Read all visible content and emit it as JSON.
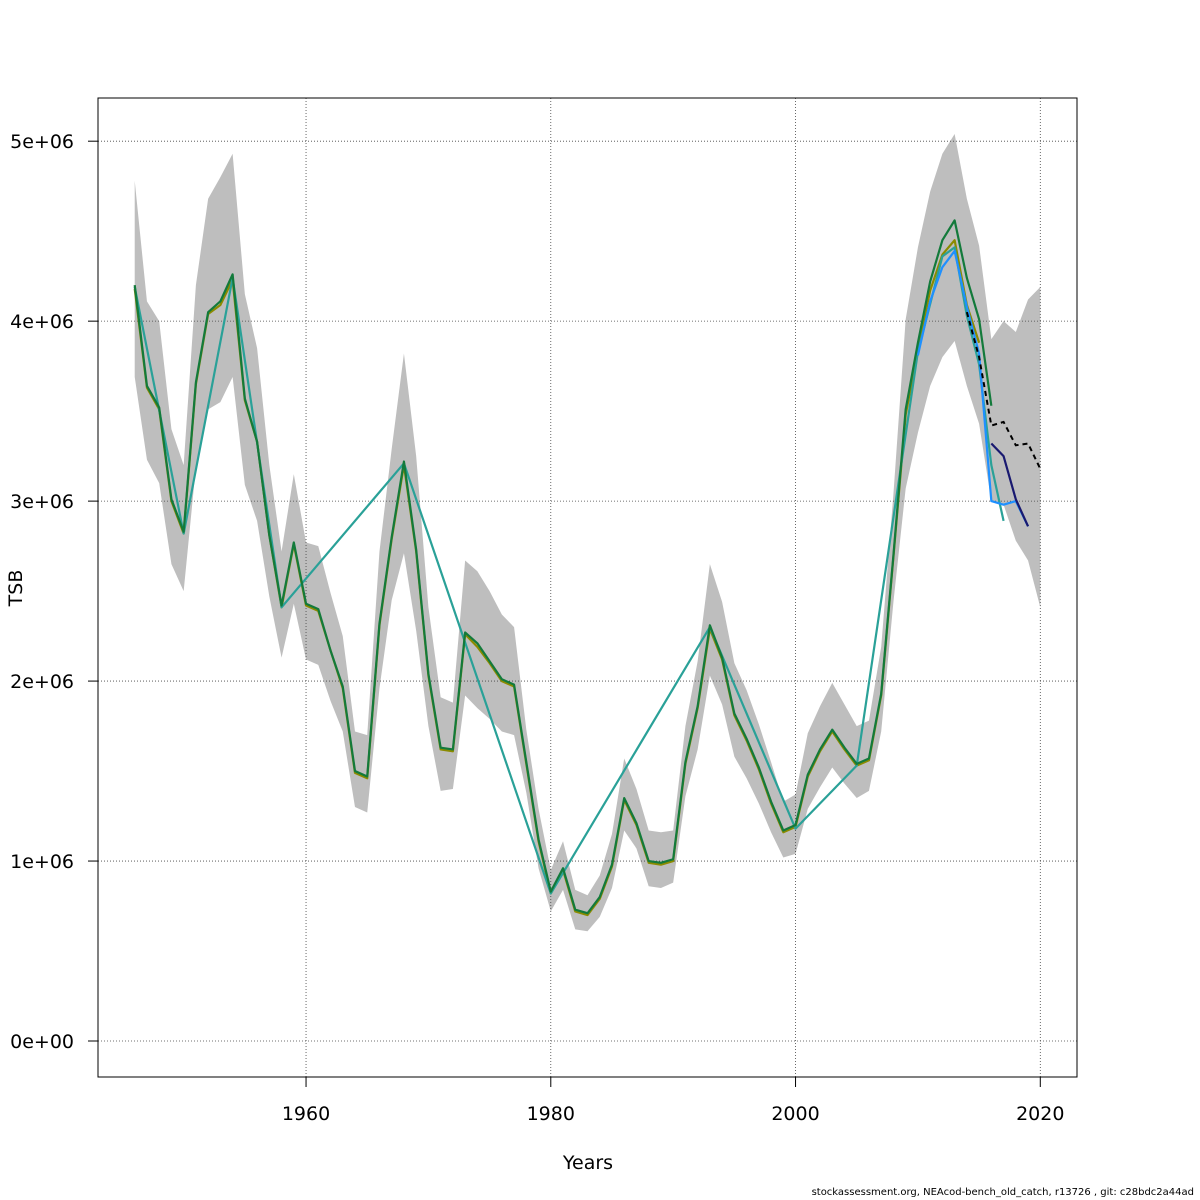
{
  "chart_data": {
    "type": "line",
    "title": "",
    "xlabel": "Years",
    "ylabel": "TSB",
    "xlim": [
      1943,
      2023
    ],
    "ylim": [
      -200000,
      5240000
    ],
    "x_ticks": [
      1960,
      1980,
      2000,
      2020
    ],
    "x_tick_labels": [
      "1960",
      "1980",
      "2000",
      "2020"
    ],
    "y_ticks": [
      0,
      1000000,
      2000000,
      3000000,
      4000000,
      5000000
    ],
    "y_tick_labels": [
      "0e+00",
      "1e+06",
      "2e+06",
      "3e+06",
      "4e+06",
      "5e+06"
    ],
    "grid": true,
    "legend": "none",
    "confidence_band": {
      "x": [
        1946,
        1947,
        1948,
        1949,
        1950,
        1951,
        1952,
        1953,
        1954,
        1955,
        1956,
        1957,
        1958,
        1959,
        1960,
        1961,
        1962,
        1963,
        1964,
        1965,
        1966,
        1967,
        1968,
        1969,
        1970,
        1971,
        1972,
        1973,
        1974,
        1975,
        1976,
        1977,
        1978,
        1979,
        1980,
        1981,
        1982,
        1983,
        1984,
        1985,
        1986,
        1987,
        1988,
        1989,
        1990,
        1991,
        1992,
        1993,
        1994,
        1995,
        1996,
        1997,
        1998,
        1999,
        2000,
        2001,
        2002,
        2003,
        2004,
        2005,
        2006,
        2007,
        2008,
        2009,
        2010,
        2011,
        2012,
        2013,
        2014,
        2015,
        2016,
        2017,
        2018,
        2019,
        2020
      ],
      "upper": [
        4780000,
        4110000,
        4000000,
        3400000,
        3200000,
        4200000,
        4680000,
        4800000,
        4930000,
        4150000,
        3850000,
        3200000,
        2720000,
        3150000,
        2770000,
        2750000,
        2490000,
        2250000,
        1720000,
        1700000,
        2720000,
        3290000,
        3820000,
        3250000,
        2410000,
        1910000,
        1880000,
        2670000,
        2610000,
        2500000,
        2370000,
        2300000,
        1730000,
        1290000,
        950000,
        1110000,
        840000,
        810000,
        920000,
        1150000,
        1570000,
        1400000,
        1170000,
        1160000,
        1170000,
        1750000,
        2110000,
        2650000,
        2440000,
        2100000,
        1950000,
        1760000,
        1550000,
        1330000,
        1370000,
        1710000,
        1860000,
        1990000,
        1870000,
        1750000,
        1780000,
        2190000,
        3040000,
        4010000,
        4410000,
        4720000,
        4930000,
        5040000,
        4680000,
        4420000,
        3900000,
        4000000,
        3940000,
        4120000,
        4190000
      ],
      "lower": [
        3690000,
        3230000,
        3100000,
        2650000,
        2500000,
        3190000,
        3510000,
        3550000,
        3690000,
        3090000,
        2890000,
        2470000,
        2130000,
        2430000,
        2120000,
        2090000,
        1890000,
        1720000,
        1300000,
        1270000,
        1960000,
        2450000,
        2710000,
        2280000,
        1750000,
        1390000,
        1400000,
        1920000,
        1850000,
        1790000,
        1720000,
        1700000,
        1380000,
        960000,
        720000,
        840000,
        620000,
        610000,
        690000,
        850000,
        1170000,
        1070000,
        860000,
        850000,
        880000,
        1360000,
        1620000,
        2030000,
        1870000,
        1580000,
        1460000,
        1320000,
        1160000,
        1020000,
        1040000,
        1290000,
        1410000,
        1520000,
        1430000,
        1350000,
        1390000,
        1720000,
        2440000,
        3070000,
        3380000,
        3640000,
        3800000,
        3890000,
        3640000,
        3430000,
        3000000,
        2980000,
        2780000,
        2670000,
        2410000
      ]
    },
    "series": [
      {
        "color": "#8B8B00",
        "x": [
          1946,
          1947,
          1948,
          1949,
          1950,
          1951,
          1952,
          1953,
          1954,
          1955,
          1956,
          1957,
          1958,
          1959,
          1960,
          1961,
          1962,
          1963,
          1964,
          1965,
          1966,
          1967,
          1968,
          1969,
          1970,
          1971,
          1972,
          1973,
          1974,
          1975,
          1976,
          1977,
          1978,
          1979,
          1980,
          1981,
          1982,
          1983,
          1984,
          1985,
          1986,
          1987,
          1988,
          1989,
          1990,
          1991,
          1992,
          1993,
          1994,
          1995,
          1996,
          1997,
          1998,
          1999,
          2000,
          2001,
          2002,
          2003,
          2004,
          2005,
          2006,
          2007,
          2008,
          2009,
          2010,
          2011,
          2012,
          2013,
          2014,
          2015
        ],
        "y": [
          4180000,
          3630000,
          3510000,
          3000000,
          2820000,
          3650000,
          4040000,
          4090000,
          4230000,
          3560000,
          3330000,
          2810000,
          2410000,
          2760000,
          2420000,
          2390000,
          2170000,
          1960000,
          1490000,
          1460000,
          2310000,
          2790000,
          3200000,
          2720000,
          2030000,
          1620000,
          1610000,
          2260000,
          2190000,
          2100000,
          2000000,
          1970000,
          1540000,
          1110000,
          820000,
          950000,
          720000,
          700000,
          790000,
          970000,
          1340000,
          1200000,
          990000,
          980000,
          1000000,
          1540000,
          1850000,
          2290000,
          2120000,
          1810000,
          1670000,
          1510000,
          1320000,
          1160000,
          1190000,
          1470000,
          1610000,
          1720000,
          1620000,
          1530000,
          1560000,
          1920000,
          2690000,
          3480000,
          3840000,
          4170000,
          4370000,
          4450000,
          4090000,
          3880000
        ]
      },
      {
        "color": "#2AA198",
        "x": [
          1946,
          1950,
          1954,
          1958,
          1968,
          1980,
          1993,
          2000,
          2005,
          2010,
          2012,
          2013,
          2014,
          2015,
          2016,
          2017
        ],
        "y": [
          4190000,
          2820000,
          4240000,
          2410000,
          3210000,
          820000,
          2300000,
          1180000,
          1530000,
          3830000,
          4360000,
          4410000,
          4030000,
          3760000,
          3200000,
          2890000
        ]
      },
      {
        "color": "#1E90FF",
        "x": [
          2010,
          2011,
          2012,
          2013,
          2014,
          2015,
          2016,
          2017,
          2018,
          2019
        ],
        "y": [
          3810000,
          4110000,
          4300000,
          4390000,
          4080000,
          3820000,
          3000000,
          2980000,
          3000000,
          2860000
        ]
      },
      {
        "color": "#191970",
        "x": [
          2016,
          2017,
          2018,
          2019
        ],
        "y": [
          3320000,
          3250000,
          3010000,
          2860000
        ]
      },
      {
        "color": "#137A3B",
        "x": [
          1946,
          1947,
          1948,
          1949,
          1950,
          1951,
          1952,
          1953,
          1954,
          1955,
          1956,
          1957,
          1958,
          1959,
          1960,
          1961,
          1962,
          1963,
          1964,
          1965,
          1966,
          1967,
          1968,
          1969,
          1970,
          1971,
          1972,
          1973,
          1974,
          1975,
          1976,
          1977,
          1978,
          1979,
          1980,
          1981,
          1982,
          1983,
          1984,
          1985,
          1986,
          1987,
          1988,
          1989,
          1990,
          1991,
          1992,
          1993,
          1994,
          1995,
          1996,
          1997,
          1998,
          1999,
          2000,
          2001,
          2002,
          2003,
          2004,
          2005,
          2006,
          2007,
          2008,
          2009,
          2010,
          2011,
          2012,
          2013,
          2014,
          2015,
          2016
        ],
        "y": [
          4200000,
          3640000,
          3520000,
          3010000,
          2830000,
          3660000,
          4050000,
          4110000,
          4260000,
          3570000,
          3330000,
          2810000,
          2420000,
          2770000,
          2430000,
          2400000,
          2170000,
          1970000,
          1500000,
          1470000,
          2320000,
          2800000,
          3220000,
          2730000,
          2040000,
          1630000,
          1620000,
          2270000,
          2210000,
          2110000,
          2010000,
          1980000,
          1550000,
          1120000,
          830000,
          960000,
          730000,
          710000,
          800000,
          980000,
          1350000,
          1210000,
          1000000,
          990000,
          1010000,
          1550000,
          1860000,
          2310000,
          2130000,
          1820000,
          1680000,
          1520000,
          1330000,
          1170000,
          1200000,
          1480000,
          1620000,
          1730000,
          1630000,
          1540000,
          1570000,
          1930000,
          2700000,
          3510000,
          3880000,
          4220000,
          4450000,
          4560000,
          4240000,
          4010000,
          3530000
        ]
      }
    ],
    "dashed_series": {
      "color": "#000000",
      "x": [
        2014,
        2015,
        2016,
        2017,
        2018,
        2019,
        2020
      ],
      "y": [
        4050000,
        3800000,
        3420000,
        3440000,
        3310000,
        3320000,
        3180000
      ]
    }
  },
  "footer": "stockassessment.org, NEAcod-bench_old_catch, r13726 , git: c28bdc2a44ad"
}
